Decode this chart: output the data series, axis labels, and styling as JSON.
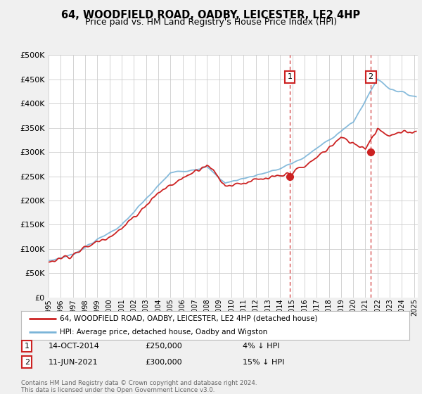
{
  "title": "64, WOODFIELD ROAD, OADBY, LEICESTER, LE2 4HP",
  "subtitle": "Price paid vs. HM Land Registry's House Price Index (HPI)",
  "legend_line1": "64, WOODFIELD ROAD, OADBY, LEICESTER, LE2 4HP (detached house)",
  "legend_line2": "HPI: Average price, detached house, Oadby and Wigston",
  "annotation1_label": "1",
  "annotation1_date": "14-OCT-2014",
  "annotation1_price": "£250,000",
  "annotation1_hpi": "4% ↓ HPI",
  "annotation1_year": 2014.79,
  "annotation1_value": 250000,
  "annotation2_label": "2",
  "annotation2_date": "11-JUN-2021",
  "annotation2_price": "£300,000",
  "annotation2_hpi": "15% ↓ HPI",
  "annotation2_year": 2021.44,
  "annotation2_value": 300000,
  "footer": "Contains HM Land Registry data © Crown copyright and database right 2024.\nThis data is licensed under the Open Government Licence v3.0.",
  "ylim": [
    0,
    500000
  ],
  "yticks": [
    0,
    50000,
    100000,
    150000,
    200000,
    250000,
    300000,
    350000,
    400000,
    450000,
    500000
  ],
  "hpi_color": "#7ab4d8",
  "price_color": "#cc2222",
  "vline_color": "#cc2222",
  "bg_color": "#f0f0f0",
  "plot_bg_color": "#ffffff",
  "grid_color": "#cccccc",
  "xlim_start": 1995,
  "xlim_end": 2025.3
}
